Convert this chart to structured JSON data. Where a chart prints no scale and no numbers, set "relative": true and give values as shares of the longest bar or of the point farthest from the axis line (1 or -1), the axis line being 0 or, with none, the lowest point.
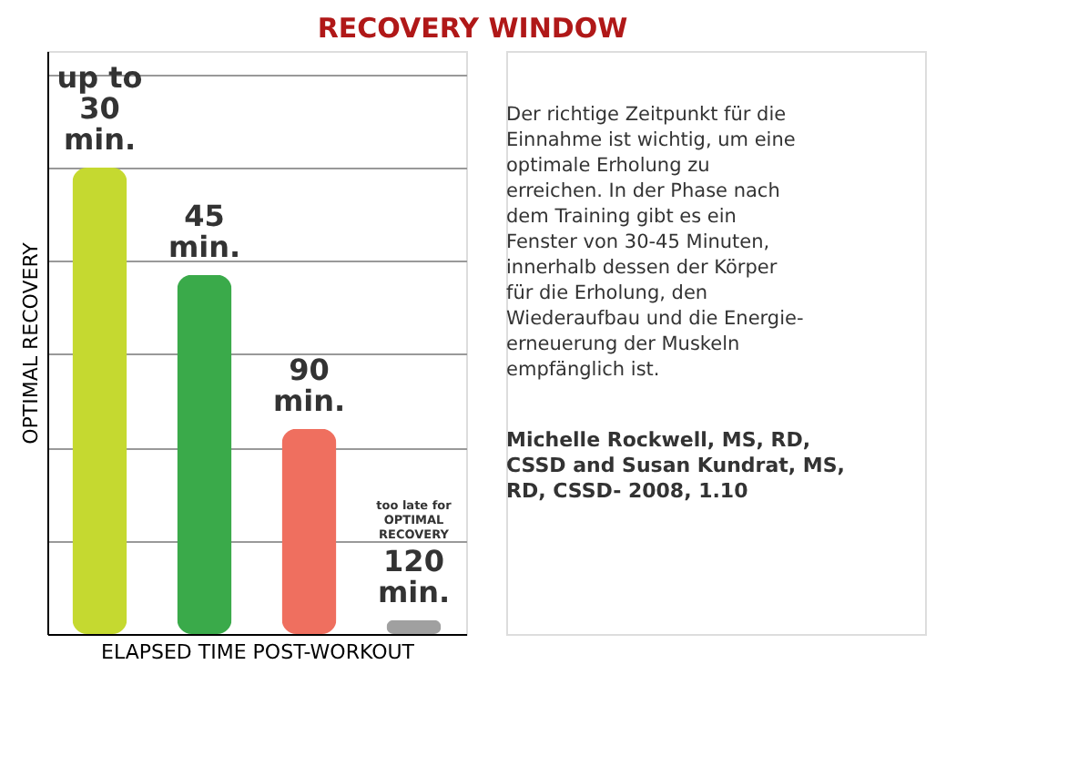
{
  "chart_data": {
    "type": "bar",
    "title": "RECOVERY WINDOW",
    "xlabel": "ELAPSED TIME POST-WORKOUT",
    "ylabel": "OPTIMAL RECOVERY",
    "categories": [
      "up to\n30\nmin.",
      "45\nmin.",
      "90\nmin.",
      "120\nmin."
    ],
    "values": [
      1,
      0.77,
      0.44,
      0.03
    ],
    "colors": [
      "#c5d930",
      "#3aaa4a",
      "#ef6f5f",
      "#a0a0a0"
    ],
    "relative": true,
    "grid": "y",
    "tick_labels": false,
    "annotations": [
      "too late for\nOPTIMAL\nRECOVERY",
      "Der richtige Zeitpunkt für die Einnahme ist wichtig, um eine optimale Erholung zu erreichen. In der Phase nach dem Training gibt es ein Fenster von 30-45 Minuten, innerhalb dessen der Körper für die Erholung, den Wiederaufbau und die Energie-erneuerung der Muskeln empfänglich ist.",
      "Michelle Rockwell, MS, RD, CSSD and Susan Kundrat, MS, RD, CSSD- 2008, 1.10"
    ]
  }
}
